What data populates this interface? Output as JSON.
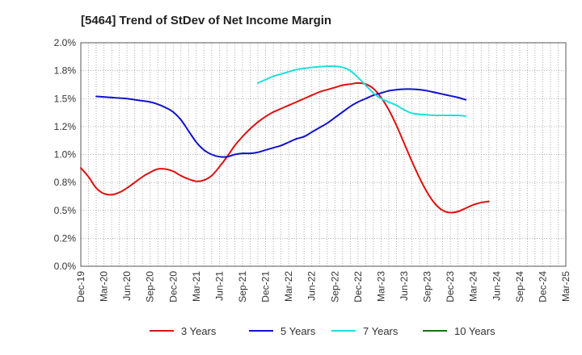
{
  "chart_data": {
    "type": "line",
    "title": "[5464]  Trend of StDev of Net Income Margin",
    "xlabel": "",
    "ylabel": "",
    "x_ticks": [
      "Dec-19",
      "Mar-20",
      "Jun-20",
      "Sep-20",
      "Dec-20",
      "Mar-21",
      "Jun-21",
      "Sep-21",
      "Dec-21",
      "Mar-22",
      "Jun-22",
      "Sep-22",
      "Dec-22",
      "Mar-23",
      "Jun-23",
      "Sep-23",
      "Dec-23",
      "Mar-24",
      "Jun-24",
      "Sep-24",
      "Dec-24",
      "Mar-25"
    ],
    "y_ticks": [
      "0.0%",
      "0.2%",
      "0.5%",
      "0.8%",
      "1.0%",
      "1.2%",
      "1.5%",
      "1.8%",
      "2.0%"
    ],
    "ylim": [
      0,
      2.0
    ],
    "grid": true,
    "legend_position": "bottom",
    "series": [
      {
        "name": "3 Years",
        "color": "#dd1111",
        "start_index": 0,
        "values": [
          0.88,
          0.8,
          0.7,
          0.65,
          0.64,
          0.66,
          0.7,
          0.75,
          0.8,
          0.84,
          0.87,
          0.87,
          0.85,
          0.81,
          0.78,
          0.76,
          0.77,
          0.81,
          0.89,
          0.98,
          1.08,
          1.16,
          1.23,
          1.29,
          1.34,
          1.38,
          1.41,
          1.44,
          1.47,
          1.5,
          1.53,
          1.56,
          1.58,
          1.6,
          1.62,
          1.63,
          1.64,
          1.63,
          1.59,
          1.51,
          1.4,
          1.26,
          1.1,
          0.94,
          0.79,
          0.66,
          0.56,
          0.5,
          0.48,
          0.49,
          0.52,
          0.55,
          0.57,
          0.58
        ]
      },
      {
        "name": "5 Years",
        "color": "#1111cc",
        "start_index": 2,
        "values": [
          1.52,
          1.515,
          1.51,
          1.505,
          1.5,
          1.49,
          1.48,
          1.47,
          1.45,
          1.42,
          1.38,
          1.31,
          1.21,
          1.11,
          1.04,
          1.0,
          0.98,
          0.98,
          1.0,
          1.01,
          1.01,
          1.02,
          1.04,
          1.06,
          1.08,
          1.11,
          1.14,
          1.16,
          1.2,
          1.24,
          1.28,
          1.33,
          1.38,
          1.43,
          1.47,
          1.5,
          1.53,
          1.55,
          1.57,
          1.58,
          1.585,
          1.585,
          1.58,
          1.57,
          1.555,
          1.54,
          1.525,
          1.51,
          1.49
        ]
      },
      {
        "name": "7 Years",
        "color": "#22dddd",
        "start_index": 23,
        "values": [
          1.64,
          1.67,
          1.7,
          1.72,
          1.74,
          1.76,
          1.77,
          1.78,
          1.785,
          1.79,
          1.79,
          1.78,
          1.75,
          1.69,
          1.62,
          1.55,
          1.5,
          1.47,
          1.44,
          1.4,
          1.37,
          1.36,
          1.355,
          1.35,
          1.35,
          1.35,
          1.35,
          1.345
        ]
      },
      {
        "name": "10 Years",
        "color": "#117711",
        "start_index": 0,
        "values": []
      }
    ]
  }
}
